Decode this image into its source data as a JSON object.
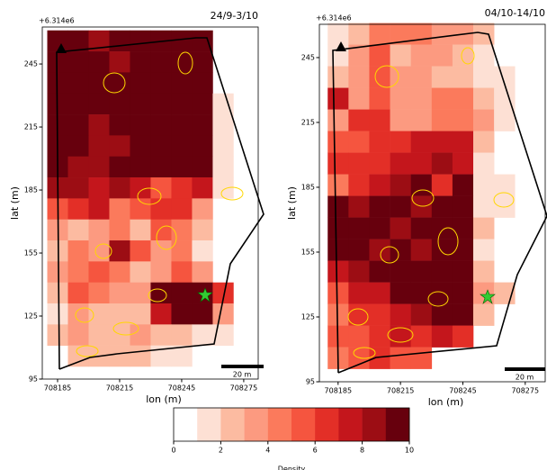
{
  "chart_data": [
    {
      "type": "heatmap",
      "title": "24/9-3/10",
      "offset_text": "+6.314e6",
      "x_label": "lon (m)",
      "y_label": "lat (m)",
      "x": [
        708185,
        708195,
        708205,
        708215,
        708225,
        708235,
        708245,
        708255,
        708265
      ],
      "y": [
        256,
        246,
        236,
        226,
        216,
        206,
        196,
        186,
        176,
        166,
        156,
        146,
        136,
        126,
        116,
        106
      ],
      "z": [
        [
          9,
          9,
          8,
          9,
          9,
          9,
          9,
          9,
          null
        ],
        [
          9,
          9,
          9,
          8,
          9,
          9,
          9,
          9,
          null
        ],
        [
          9,
          9,
          9,
          9,
          9,
          9,
          9,
          9,
          null
        ],
        [
          9,
          9,
          9,
          9,
          9,
          9,
          9,
          9,
          1
        ],
        [
          9,
          9,
          8,
          9,
          9,
          9,
          9,
          9,
          1
        ],
        [
          9,
          9,
          8,
          8,
          9,
          9,
          9,
          9,
          1
        ],
        [
          9,
          8,
          8,
          9,
          9,
          9,
          9,
          9,
          1
        ],
        [
          8,
          8,
          7,
          8,
          7,
          5,
          6,
          7,
          1
        ],
        [
          5,
          6,
          7,
          4,
          5,
          6,
          6,
          3,
          null
        ],
        [
          3,
          2,
          3,
          4,
          2,
          5,
          4,
          2,
          null
        ],
        [
          2,
          4,
          3,
          8,
          5,
          3,
          4,
          1,
          null
        ],
        [
          3,
          4,
          5,
          4,
          2,
          3,
          5,
          3,
          null
        ],
        [
          2,
          5,
          4,
          3,
          3,
          9,
          9,
          9,
          6
        ],
        [
          1,
          3,
          2,
          2,
          2,
          7,
          9,
          9,
          3
        ],
        [
          2,
          3,
          2,
          2,
          3,
          2,
          2,
          1,
          1
        ],
        [
          null,
          2,
          2,
          2,
          2,
          1,
          1,
          null,
          null
        ]
      ],
      "xlim": [
        708177.6,
        708282
      ],
      "ylim": [
        95,
        262.6
      ],
      "xticks": [
        708185,
        708215,
        708245,
        708275
      ],
      "yticks": [
        95,
        125,
        155,
        185,
        215,
        245
      ],
      "scale_bar": "20 m"
    },
    {
      "type": "heatmap",
      "title": "04/10-14/10",
      "offset_text": "+6.314e6",
      "x_label": "lon (m)",
      "y_label": "lat (m)",
      "x": [
        708185,
        708195,
        708205,
        708215,
        708225,
        708235,
        708245,
        708255,
        708265
      ],
      "y": [
        256,
        246,
        236,
        226,
        216,
        206,
        196,
        186,
        176,
        166,
        156,
        146,
        136,
        126,
        116,
        106
      ],
      "z": [
        [
          1,
          2,
          4,
          4,
          4,
          3,
          3,
          2,
          null
        ],
        [
          1,
          3,
          5,
          2,
          3,
          3,
          2,
          1,
          null
        ],
        [
          2,
          3,
          5,
          3,
          3,
          2,
          2,
          1,
          1
        ],
        [
          7,
          3,
          5,
          3,
          3,
          4,
          4,
          2,
          1
        ],
        [
          3,
          6,
          6,
          3,
          3,
          4,
          4,
          3,
          1
        ],
        [
          5,
          5,
          6,
          6,
          7,
          7,
          7,
          2,
          null
        ],
        [
          6,
          6,
          6,
          7,
          7,
          8,
          7,
          1,
          null
        ],
        [
          4,
          6,
          7,
          8,
          9,
          6,
          9,
          1,
          1
        ],
        [
          9,
          8,
          9,
          9,
          8,
          9,
          9,
          1,
          1
        ],
        [
          9,
          9,
          9,
          8,
          9,
          9,
          9,
          2,
          null
        ],
        [
          9,
          9,
          8,
          9,
          8,
          9,
          9,
          1,
          null
        ],
        [
          7,
          8,
          9,
          9,
          9,
          9,
          9,
          2,
          null
        ],
        [
          5,
          7,
          7,
          9,
          9,
          9,
          9,
          3,
          2
        ],
        [
          4,
          6,
          6,
          7,
          8,
          9,
          9,
          2,
          null
        ],
        [
          5,
          5,
          6,
          7,
          6,
          7,
          6,
          null,
          null
        ],
        [
          4,
          5,
          6,
          5,
          5,
          null,
          null,
          null,
          null
        ]
      ],
      "xlim": [
        708176,
        708284.6
      ],
      "ylim": [
        95,
        260.4
      ],
      "xticks": [
        708185,
        708215,
        708245,
        708275
      ],
      "yticks": [
        95,
        125,
        155,
        185,
        215,
        245
      ],
      "scale_bar": "20 m"
    }
  ],
  "colorbar": {
    "label": "Density",
    "bounds": [
      0,
      1,
      2,
      3,
      4,
      5,
      6,
      7,
      8,
      9,
      10
    ],
    "colors": [
      "#ffffff",
      "#fde0d4",
      "#fcbba1",
      "#fc9a80",
      "#fb7a5c",
      "#f5553f",
      "#e32f27",
      "#c4161c",
      "#9c0d14",
      "#67000d"
    ],
    "ticks": [
      0,
      2,
      4,
      6,
      8,
      10
    ]
  }
}
